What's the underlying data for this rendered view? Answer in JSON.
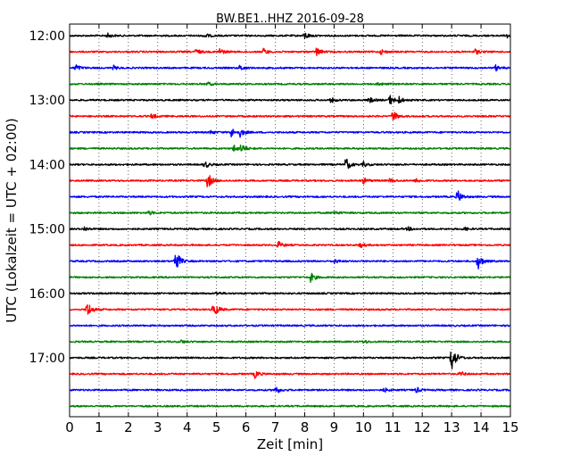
{
  "chart_data": {
    "type": "line",
    "title": "BW.BE1..HHZ 2016-09-28",
    "xlabel": "Zeit  [min]",
    "ylabel": "UTC (Lokalzeit = UTC + 02:00)",
    "xlim": [
      0,
      15
    ],
    "xticks": [
      0,
      1,
      2,
      3,
      4,
      5,
      6,
      7,
      8,
      9,
      10,
      11,
      12,
      13,
      14,
      15
    ],
    "ytick_labels": [
      "12:00",
      "13:00",
      "14:00",
      "15:00",
      "16:00",
      "17:00"
    ],
    "grid": "vertical dotted at each minute",
    "color_cycle": [
      "#000000",
      "#ff0000",
      "#0000ff",
      "#008000"
    ],
    "trace_interval_min": 15,
    "series": [
      {
        "start": "12:00",
        "color": "#000000",
        "events": [
          [
            1.3,
            0.25
          ],
          [
            4.6,
            0.3
          ],
          [
            8.0,
            0.45
          ],
          [
            14.9,
            0.35
          ]
        ]
      },
      {
        "start": "12:15",
        "color": "#ff0000",
        "events": [
          [
            4.3,
            0.35
          ],
          [
            5.1,
            0.4
          ],
          [
            6.6,
            0.4
          ],
          [
            8.4,
            0.55
          ],
          [
            10.6,
            0.3
          ],
          [
            13.8,
            0.35
          ]
        ]
      },
      {
        "start": "12:30",
        "color": "#0000ff",
        "events": [
          [
            0.2,
            0.45
          ],
          [
            1.5,
            0.25
          ],
          [
            5.8,
            0.35
          ],
          [
            14.5,
            0.35
          ]
        ]
      },
      {
        "start": "12:45",
        "color": "#008000",
        "events": [
          [
            4.7,
            0.2
          ],
          [
            10.5,
            0.2
          ]
        ]
      },
      {
        "start": "13:00",
        "color": "#000000",
        "events": [
          [
            8.9,
            0.3
          ],
          [
            10.2,
            0.35
          ],
          [
            10.9,
            0.6
          ],
          [
            11.2,
            0.4
          ]
        ]
      },
      {
        "start": "13:15",
        "color": "#ff0000",
        "events": [
          [
            2.8,
            0.35
          ],
          [
            11.0,
            0.75
          ]
        ]
      },
      {
        "start": "13:30",
        "color": "#0000ff",
        "events": [
          [
            4.8,
            0.25
          ],
          [
            5.5,
            0.6
          ],
          [
            5.8,
            0.5
          ]
        ]
      },
      {
        "start": "13:45",
        "color": "#008000",
        "events": [
          [
            5.6,
            0.45
          ],
          [
            5.85,
            0.55
          ]
        ]
      },
      {
        "start": "14:00",
        "color": "#000000",
        "events": [
          [
            4.6,
            0.45
          ],
          [
            9.4,
            0.85
          ],
          [
            10.0,
            0.3
          ]
        ]
      },
      {
        "start": "14:15",
        "color": "#ff0000",
        "events": [
          [
            4.7,
            1.0
          ],
          [
            10.0,
            0.35
          ],
          [
            10.9,
            0.25
          ],
          [
            11.8,
            0.25
          ]
        ]
      },
      {
        "start": "14:30",
        "color": "#0000ff",
        "events": [
          [
            13.2,
            0.85
          ]
        ]
      },
      {
        "start": "14:45",
        "color": "#008000",
        "events": [
          [
            2.7,
            0.25
          ],
          [
            9.0,
            0.3
          ]
        ]
      },
      {
        "start": "15:00",
        "color": "#000000",
        "events": [
          [
            0.5,
            0.25
          ],
          [
            11.5,
            0.25
          ],
          [
            13.4,
            0.25
          ]
        ]
      },
      {
        "start": "15:15",
        "color": "#ff0000",
        "events": [
          [
            7.1,
            0.45
          ],
          [
            9.9,
            0.3
          ]
        ]
      },
      {
        "start": "15:30",
        "color": "#0000ff",
        "events": [
          [
            3.6,
            1.55
          ],
          [
            13.9,
            1.0
          ],
          [
            9.0,
            0.25
          ]
        ]
      },
      {
        "start": "15:45",
        "color": "#008000",
        "events": [
          [
            8.2,
            0.6
          ]
        ]
      },
      {
        "start": "16:00",
        "color": "#000000",
        "events": [
          [
            5.0,
            0.2
          ]
        ]
      },
      {
        "start": "16:15",
        "color": "#ff0000",
        "events": [
          [
            0.6,
            1.05
          ],
          [
            4.9,
            1.05
          ]
        ]
      },
      {
        "start": "16:30",
        "color": "#0000ff",
        "events": []
      },
      {
        "start": "16:45",
        "color": "#008000",
        "events": [
          [
            3.8,
            0.2
          ],
          [
            10.0,
            0.2
          ]
        ]
      },
      {
        "start": "17:00",
        "color": "#000000",
        "events": [
          [
            13.0,
            1.8
          ]
        ]
      },
      {
        "start": "17:15",
        "color": "#ff0000",
        "events": [
          [
            6.3,
            0.5
          ],
          [
            13.3,
            0.3
          ]
        ]
      },
      {
        "start": "17:30",
        "color": "#0000ff",
        "events": [
          [
            7.0,
            0.55
          ],
          [
            11.8,
            0.35
          ],
          [
            10.7,
            0.25
          ]
        ]
      },
      {
        "start": "17:45",
        "color": "#008000",
        "events": []
      }
    ]
  }
}
